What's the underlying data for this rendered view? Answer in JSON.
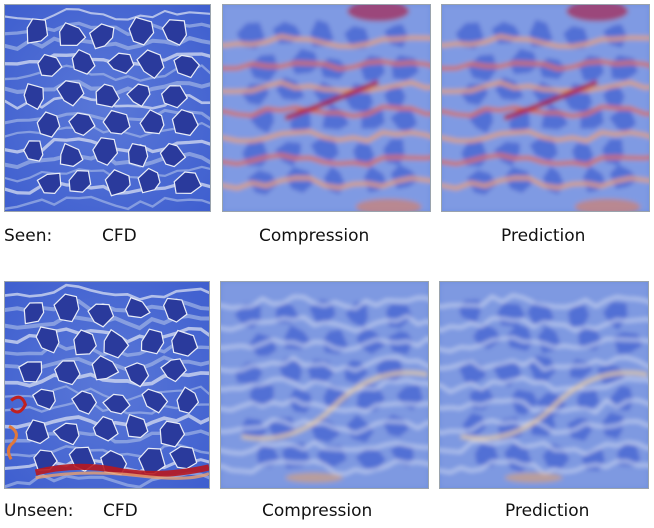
{
  "rows": [
    {
      "row_label": "Seen:",
      "panels": [
        {
          "caption": "CFD",
          "kind": "cfd",
          "variant": "seen"
        },
        {
          "caption": "Compression",
          "kind": "field",
          "variant": "seen"
        },
        {
          "caption": "Prediction",
          "kind": "field",
          "variant": "seen"
        }
      ]
    },
    {
      "row_label": "Unseen:",
      "panels": [
        {
          "caption": "CFD",
          "kind": "cfd",
          "variant": "unseen"
        },
        {
          "caption": "Compression",
          "kind": "field",
          "variant": "unseen"
        },
        {
          "caption": "Prediction",
          "kind": "field",
          "variant": "unseen"
        }
      ]
    }
  ],
  "colormap": {
    "low": "#3b4cc0",
    "mid": "#dddddd",
    "high": "#b40426"
  }
}
